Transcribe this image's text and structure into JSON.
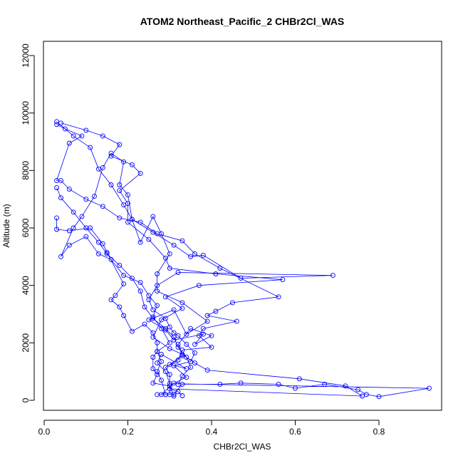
{
  "chart_data": {
    "type": "line",
    "title": "ATOM2 Northeast_Pacific_2 CHBr2Cl_WAS",
    "xlabel": "CHBr2Cl_WAS",
    "ylabel": "Altitude (m)",
    "xlim": [
      0.0,
      0.95
    ],
    "ylim": [
      0,
      12000
    ],
    "xticks": [
      "0.0",
      "0.2",
      "0.4",
      "0.6",
      "0.8"
    ],
    "yticks": [
      "0",
      "2000",
      "4000",
      "6000",
      "8000",
      "10000",
      "12000"
    ],
    "grid": false,
    "legend": "none",
    "markers": "open-circle",
    "series": [
      {
        "color": "#0000ff",
        "points": [
          [
            0.27,
            200
          ],
          [
            0.29,
            200
          ],
          [
            0.31,
            210
          ],
          [
            0.33,
            560
          ],
          [
            0.42,
            560
          ],
          [
            0.47,
            600
          ],
          [
            0.56,
            560
          ],
          [
            0.6,
            420
          ],
          [
            0.67,
            560
          ],
          [
            0.75,
            370
          ],
          [
            0.77,
            200
          ],
          [
            0.8,
            130
          ],
          [
            0.92,
            420
          ],
          [
            0.3,
            580
          ],
          [
            0.29,
            1000
          ],
          [
            0.27,
            1300
          ],
          [
            0.28,
            1600
          ],
          [
            0.34,
            1100
          ],
          [
            0.3,
            1250
          ],
          [
            0.33,
            1550
          ],
          [
            0.32,
            1950
          ],
          [
            0.35,
            2500
          ],
          [
            0.4,
            2250
          ],
          [
            0.36,
            1950
          ],
          [
            0.38,
            2300
          ],
          [
            0.31,
            2100
          ],
          [
            0.29,
            2450
          ],
          [
            0.25,
            2800
          ],
          [
            0.31,
            3150
          ],
          [
            0.34,
            2300
          ],
          [
            0.39,
            2750
          ],
          [
            0.33,
            3400
          ],
          [
            0.27,
            3800
          ],
          [
            0.27,
            4400
          ],
          [
            0.3,
            5100
          ],
          [
            0.28,
            5800
          ],
          [
            0.26,
            6400
          ],
          [
            0.23,
            5500
          ],
          [
            0.21,
            6300
          ],
          [
            0.2,
            7150
          ],
          [
            0.18,
            7500
          ],
          [
            0.19,
            8300
          ],
          [
            0.16,
            8600
          ],
          [
            0.14,
            8100
          ],
          [
            0.12,
            7100
          ],
          [
            0.09,
            6400
          ],
          [
            0.07,
            6000
          ],
          [
            0.04,
            5000
          ],
          [
            0.06,
            5400
          ],
          [
            0.1,
            5700
          ],
          [
            0.13,
            5100
          ],
          [
            0.16,
            4900
          ],
          [
            0.19,
            4350
          ],
          [
            0.23,
            4100
          ],
          [
            0.25,
            3650
          ],
          [
            0.27,
            3300
          ],
          [
            0.26,
            2900
          ],
          [
            0.28,
            2500
          ],
          [
            0.3,
            2000
          ],
          [
            0.27,
            1700
          ],
          [
            0.26,
            1500
          ],
          [
            0.26,
            1100
          ],
          [
            0.27,
            900
          ],
          [
            0.26,
            600
          ],
          [
            0.3,
            500
          ],
          [
            0.31,
            150
          ]
        ]
      },
      {
        "color": "#0000ff",
        "points": [
          [
            0.04,
            9650
          ],
          [
            0.1,
            9400
          ],
          [
            0.14,
            9200
          ],
          [
            0.18,
            8900
          ],
          [
            0.16,
            8500
          ],
          [
            0.21,
            8200
          ],
          [
            0.23,
            7900
          ],
          [
            0.18,
            7300
          ],
          [
            0.2,
            6850
          ],
          [
            0.2,
            6200
          ],
          [
            0.25,
            5600
          ],
          [
            0.29,
            4950
          ],
          [
            0.3,
            4600
          ],
          [
            0.41,
            4400
          ],
          [
            0.57,
            4200
          ],
          [
            0.37,
            4000
          ],
          [
            0.29,
            3600
          ],
          [
            0.33,
            3200
          ],
          [
            0.28,
            2800
          ],
          [
            0.26,
            2200
          ],
          [
            0.3,
            1800
          ],
          [
            0.33,
            1600
          ],
          [
            0.36,
            1300
          ],
          [
            0.39,
            1050
          ],
          [
            0.61,
            750
          ],
          [
            0.72,
            500
          ],
          [
            0.76,
            150
          ],
          [
            0.3,
            400
          ],
          [
            0.32,
            300
          ],
          [
            0.33,
            160
          ]
        ]
      },
      {
        "color": "#0000ff",
        "points": [
          [
            0.03,
            9700
          ],
          [
            0.07,
            9200
          ],
          [
            0.11,
            8800
          ],
          [
            0.13,
            8050
          ],
          [
            0.16,
            7500
          ],
          [
            0.19,
            6800
          ],
          [
            0.21,
            6300
          ],
          [
            0.26,
            5850
          ],
          [
            0.31,
            5400
          ],
          [
            0.35,
            5000
          ],
          [
            0.38,
            5050
          ],
          [
            0.47,
            4250
          ],
          [
            0.69,
            4350
          ],
          [
            0.32,
            4450
          ],
          [
            0.27,
            4000
          ],
          [
            0.25,
            3500
          ],
          [
            0.26,
            3150
          ],
          [
            0.29,
            2850
          ],
          [
            0.3,
            2550
          ],
          [
            0.31,
            2350
          ],
          [
            0.32,
            2250
          ],
          [
            0.34,
            1950
          ],
          [
            0.36,
            1650
          ],
          [
            0.35,
            1350
          ],
          [
            0.31,
            1200
          ],
          [
            0.34,
            800
          ],
          [
            0.31,
            600
          ],
          [
            0.28,
            200
          ]
        ]
      },
      {
        "color": "#0000ff",
        "points": [
          [
            0.03,
            9600
          ],
          [
            0.05,
            9450
          ],
          [
            0.09,
            9200
          ],
          [
            0.06,
            8950
          ],
          [
            0.03,
            7650
          ],
          [
            0.04,
            7650
          ],
          [
            0.06,
            7350
          ],
          [
            0.1,
            7000
          ],
          [
            0.14,
            6750
          ],
          [
            0.18,
            6350
          ],
          [
            0.23,
            6200
          ],
          [
            0.27,
            5800
          ],
          [
            0.33,
            5550
          ],
          [
            0.36,
            5100
          ],
          [
            0.42,
            4600
          ],
          [
            0.56,
            3600
          ],
          [
            0.45,
            3400
          ],
          [
            0.41,
            3100
          ],
          [
            0.39,
            2950
          ],
          [
            0.46,
            2750
          ],
          [
            0.38,
            2500
          ],
          [
            0.37,
            2250
          ],
          [
            0.4,
            1850
          ],
          [
            0.33,
            1750
          ],
          [
            0.32,
            1400
          ],
          [
            0.29,
            1150
          ],
          [
            0.3,
            900
          ],
          [
            0.3,
            500
          ],
          [
            0.3,
            200
          ]
        ]
      },
      {
        "color": "#0000ff",
        "points": [
          [
            0.03,
            7400
          ],
          [
            0.04,
            7050
          ],
          [
            0.07,
            6550
          ],
          [
            0.1,
            6000
          ],
          [
            0.13,
            5500
          ],
          [
            0.15,
            5100
          ],
          [
            0.18,
            4700
          ],
          [
            0.21,
            4250
          ],
          [
            0.23,
            3800
          ],
          [
            0.24,
            3250
          ],
          [
            0.26,
            2850
          ],
          [
            0.29,
            2500
          ],
          [
            0.31,
            2200
          ],
          [
            0.32,
            1850
          ],
          [
            0.34,
            1500
          ],
          [
            0.35,
            1150
          ],
          [
            0.33,
            850
          ],
          [
            0.32,
            550
          ]
        ]
      },
      {
        "color": "#0000ff",
        "points": [
          [
            0.03,
            6350
          ],
          [
            0.03,
            5950
          ],
          [
            0.06,
            5900
          ],
          [
            0.11,
            6000
          ],
          [
            0.14,
            5450
          ],
          [
            0.15,
            5150
          ],
          [
            0.19,
            4050
          ],
          [
            0.17,
            3650
          ],
          [
            0.16,
            3500
          ],
          [
            0.18,
            3250
          ],
          [
            0.19,
            2950
          ],
          [
            0.21,
            2400
          ],
          [
            0.24,
            2650
          ],
          [
            0.26,
            2350
          ],
          [
            0.27,
            2000
          ],
          [
            0.27,
            1700
          ],
          [
            0.28,
            1350
          ],
          [
            0.27,
            1000
          ],
          [
            0.28,
            700
          ],
          [
            0.29,
            200
          ]
        ]
      }
    ]
  }
}
